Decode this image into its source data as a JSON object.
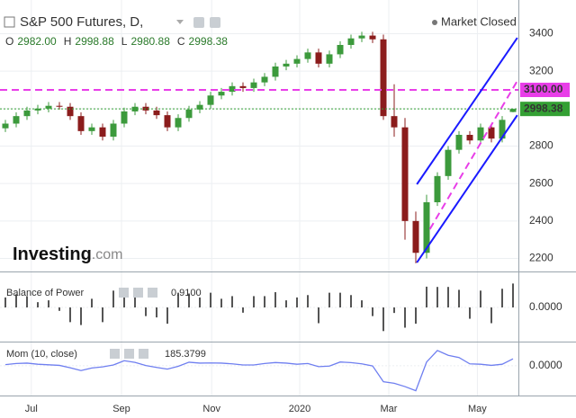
{
  "header": {
    "title": "S&P 500 Futures, D,",
    "status": "Market Closed",
    "ohlc": [
      {
        "key": "O",
        "value": "2982.00"
      },
      {
        "key": "H",
        "value": "2998.88"
      },
      {
        "key": "L",
        "value": "2980.88"
      },
      {
        "key": "C",
        "value": "2998.38"
      }
    ]
  },
  "logo": {
    "main": "Investing",
    "suffix": ".com"
  },
  "chart_data": [
    {
      "type": "candlestick",
      "up_color": "#3c9a3c",
      "down_color": "#8b1c1c",
      "xlim": [
        -0.5,
        47.5
      ],
      "xticks": [
        {
          "value": 2.4,
          "label": "Jul"
        },
        {
          "value": 10.75,
          "label": "Sep"
        },
        {
          "value": 19.1,
          "label": "Nov"
        },
        {
          "value": 27.25,
          "label": "2020"
        },
        {
          "value": 35.5,
          "label": "Mar"
        },
        {
          "value": 43.7,
          "label": "May"
        }
      ],
      "ylim": [
        2140,
        3580
      ],
      "yticks": [
        2200,
        2400,
        2600,
        2800,
        3000,
        3200,
        3400
      ],
      "grid": true,
      "open": [
        2895,
        2920,
        2960,
        2990,
        3000,
        3015,
        3010,
        2960,
        2880,
        2900,
        2850,
        2920,
        2985,
        3010,
        2990,
        2965,
        2900,
        2950,
        2995,
        3020,
        3070,
        3090,
        3120,
        3110,
        3140,
        3170,
        3225,
        3240,
        3265,
        3300,
        3240,
        3290,
        3340,
        3375,
        3390,
        3370,
        2960,
        2900,
        2400,
        2230,
        2500,
        2640,
        2780,
        2860,
        2830,
        2900,
        2840,
        2982
      ],
      "high": [
        2940,
        2980,
        3010,
        3020,
        3035,
        3035,
        3030,
        2980,
        2920,
        2920,
        2940,
        3005,
        3030,
        3030,
        3010,
        2985,
        2970,
        3015,
        3040,
        3090,
        3110,
        3140,
        3140,
        3160,
        3190,
        3245,
        3260,
        3285,
        3320,
        3320,
        3310,
        3360,
        3395,
        3410,
        3410,
        3395,
        3130,
        2950,
        2450,
        2540,
        2660,
        2800,
        2880,
        2880,
        2920,
        2920,
        2960,
        2998.88
      ],
      "low": [
        2875,
        2900,
        2940,
        2970,
        2980,
        2995,
        2940,
        2860,
        2860,
        2830,
        2830,
        2900,
        2965,
        2970,
        2945,
        2880,
        2880,
        2930,
        2975,
        3000,
        3050,
        3070,
        3090,
        3090,
        3120,
        3150,
        3205,
        3220,
        3245,
        3220,
        3220,
        3270,
        3320,
        3355,
        3350,
        2940,
        2850,
        2300,
        2174,
        2200,
        2480,
        2620,
        2760,
        2810,
        2810,
        2820,
        2820,
        2980.88
      ],
      "close": [
        2920,
        2960,
        2990,
        3000,
        3015,
        3010,
        2960,
        2880,
        2900,
        2850,
        2920,
        2985,
        3010,
        2990,
        2965,
        2900,
        2950,
        2995,
        3020,
        3070,
        3090,
        3120,
        3110,
        3140,
        3170,
        3225,
        3240,
        3265,
        3300,
        3240,
        3290,
        3340,
        3375,
        3390,
        3370,
        2960,
        2900,
        2400,
        2230,
        2500,
        2640,
        2780,
        2860,
        2830,
        2900,
        2840,
        2940,
        2998.38
      ],
      "hlines": [
        {
          "value": 3100,
          "label": "3100.00",
          "color": "#e83ee8",
          "style": "dashed"
        },
        {
          "value": 2998.38,
          "label": "2998.38",
          "color": "#34a034",
          "style": "dotted"
        }
      ],
      "trend_lines": [
        {
          "color": "#1a1aff",
          "style": "solid",
          "points": [
            [
              38.1,
              2596
            ],
            [
              47.4,
              3378
            ]
          ]
        },
        {
          "color": "#1a1aff",
          "style": "solid",
          "points": [
            [
              38.1,
              2178
            ],
            [
              47.4,
              2965
            ]
          ]
        },
        {
          "color": "#e83ee8",
          "style": "dashed",
          "points": [
            [
              39.3,
              2356
            ],
            [
              47.4,
              3148
            ]
          ]
        }
      ]
    },
    {
      "type": "bar",
      "title": "Balance of Power",
      "current_label": "0.9100",
      "color": "#555555",
      "ylim": [
        -1.3,
        1.3
      ],
      "yticks": [
        {
          "value": 0,
          "label": "0.0000"
        }
      ],
      "values": [
        0.38,
        0.5,
        0.43,
        0.2,
        0.27,
        -0.13,
        -0.56,
        -0.67,
        0.33,
        -0.56,
        0.64,
        0.62,
        0.38,
        -0.33,
        -0.38,
        -0.62,
        0.56,
        0.53,
        0.38,
        0.56,
        0.33,
        0.43,
        -0.2,
        0.43,
        0.43,
        0.58,
        0.27,
        0.38,
        0.47,
        -0.6,
        0.56,
        0.56,
        0.47,
        0.27,
        -0.33,
        -0.9,
        -0.21,
        -0.77,
        -0.62,
        0.79,
        0.78,
        0.78,
        0.67,
        -0.43,
        0.64,
        -0.6,
        0.71,
        0.91
      ]
    },
    {
      "type": "line",
      "title": "Mom (10, close)",
      "color": "#6f7ff0",
      "ylim": [
        -800,
        600
      ],
      "yticks": [
        {
          "value": 0,
          "label": "0.0000"
        }
      ],
      "values": [
        30,
        60,
        70,
        40,
        25,
        10,
        -55,
        -130,
        -60,
        -30,
        20,
        135,
        90,
        5,
        -45,
        -90,
        -15,
        95,
        70,
        75,
        70,
        50,
        20,
        20,
        60,
        85,
        70,
        40,
        60,
        -25,
        -10,
        100,
        85,
        50,
        -5,
        -430,
        -470,
        -560,
        -670,
        100,
        410,
        280,
        220,
        50,
        40,
        10,
        40,
        185.3799
      ]
    }
  ]
}
